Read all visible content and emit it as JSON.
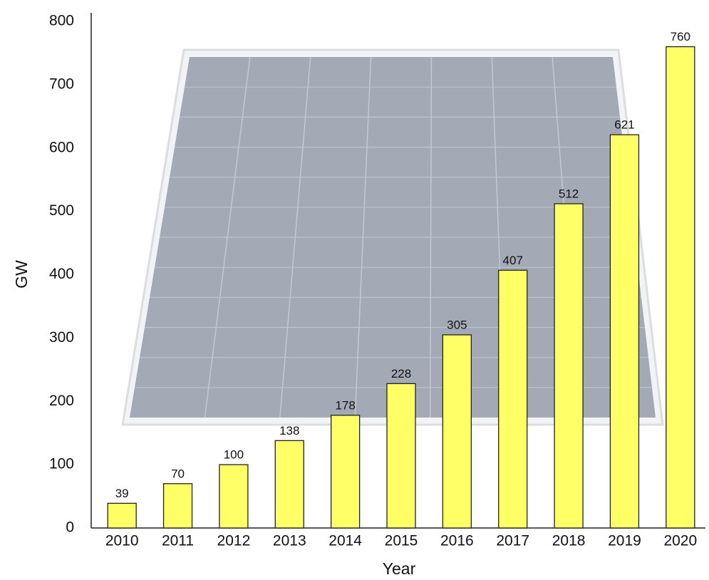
{
  "chart_data": {
    "type": "bar",
    "x_label": "Year",
    "y_label": "GW",
    "categories": [
      "2010",
      "2011",
      "2012",
      "2013",
      "2014",
      "2015",
      "2016",
      "2017",
      "2018",
      "2019",
      "2020"
    ],
    "values": [
      39,
      70,
      100,
      138,
      178,
      228,
      305,
      407,
      512,
      621,
      760
    ],
    "color": "#ffff66",
    "ylim": [
      0,
      800
    ],
    "yticks": [
      0,
      100,
      200,
      300,
      400,
      500,
      600,
      700,
      800
    ],
    "grid": false
  }
}
